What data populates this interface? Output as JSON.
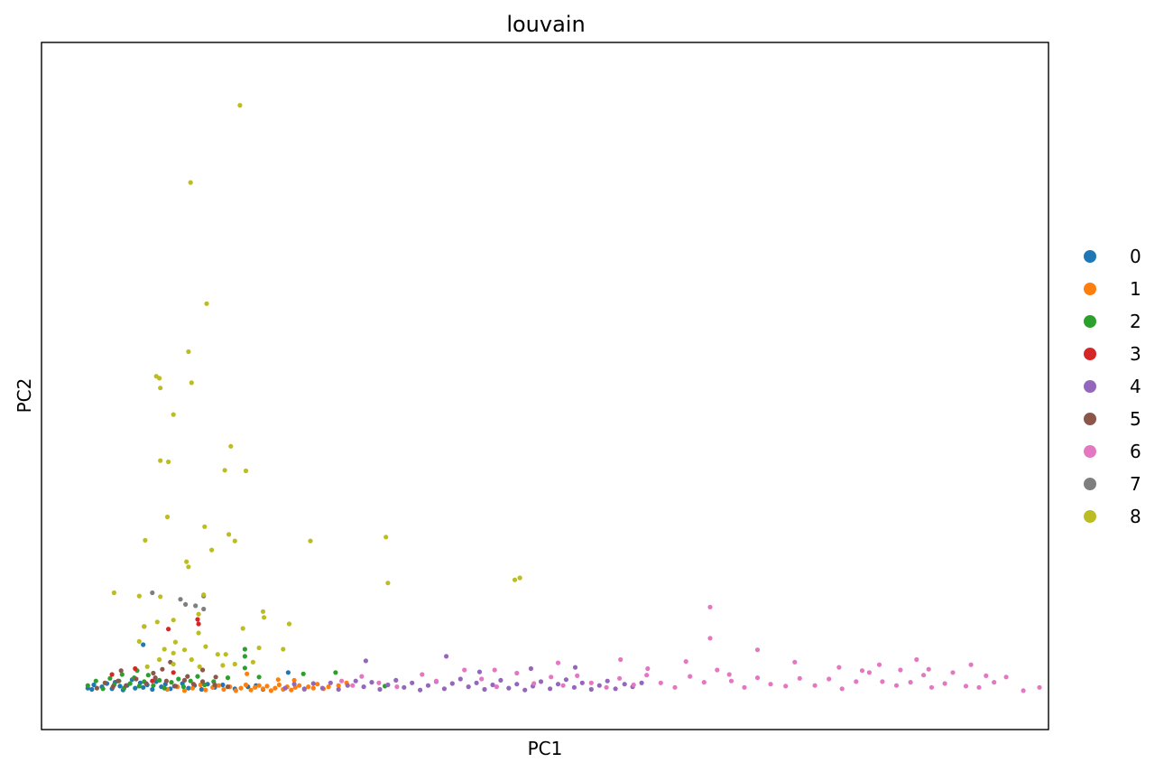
{
  "chart_data": {
    "type": "scatter",
    "title": "louvain",
    "xlabel": "PC1",
    "ylabel": "PC2",
    "xlim": [
      0,
      100
    ],
    "ylim": [
      -6,
      100
    ],
    "grid": false,
    "x_ticks_shown": false,
    "y_ticks_shown": false,
    "legend": {
      "placement": "right",
      "title": ""
    },
    "series": [
      {
        "name": "0",
        "color": "#1f77b4",
        "points": [
          [
            4.6,
            0.4
          ],
          [
            5,
            0.2
          ],
          [
            5.2,
            0.9
          ],
          [
            6,
            0.6
          ],
          [
            6.5,
            1.1
          ],
          [
            7,
            0.3
          ],
          [
            7.3,
            1.3
          ],
          [
            7.8,
            0.7
          ],
          [
            8.1,
            0.1
          ],
          [
            8.5,
            0.8
          ],
          [
            9,
            1.7
          ],
          [
            9.3,
            0.4
          ],
          [
            9.8,
            1.2
          ],
          [
            10.1,
            0.5
          ],
          [
            10.5,
            0.9
          ],
          [
            11,
            0.2
          ],
          [
            11.4,
            1.4
          ],
          [
            11.9,
            0.6
          ],
          [
            12.3,
            1
          ],
          [
            12.8,
            0.3
          ],
          [
            13.2,
            0.7
          ],
          [
            14,
            1.1
          ],
          [
            14.6,
            0.4
          ],
          [
            15.2,
            0.8
          ],
          [
            15.9,
            0.2
          ],
          [
            16.5,
            1
          ],
          [
            17.2,
            0.5
          ],
          [
            18,
            0.9
          ],
          [
            19.2,
            0.3
          ],
          [
            20.5,
            0.6
          ],
          [
            21.3,
            0.8
          ],
          [
            22,
            0.2
          ],
          [
            24.5,
            2.8
          ],
          [
            10.1,
            7.1
          ]
        ]
      },
      {
        "name": "1",
        "color": "#ff7f0e",
        "points": [
          [
            12.5,
            0.2
          ],
          [
            13.5,
            0.6
          ],
          [
            14.2,
            0
          ],
          [
            15,
            0.4
          ],
          [
            15.8,
            0.9
          ],
          [
            16.3,
            0.1
          ],
          [
            17,
            0.5
          ],
          [
            17.6,
            0.8
          ],
          [
            18.1,
            0.2
          ],
          [
            18.7,
            0.6
          ],
          [
            19.3,
            0
          ],
          [
            19.8,
            0.4
          ],
          [
            20.3,
            0.9
          ],
          [
            20.8,
            0.1
          ],
          [
            21.2,
            0.5
          ],
          [
            21.6,
            0.8
          ],
          [
            22,
            0.3
          ],
          [
            22.4,
            0.7
          ],
          [
            22.8,
            0
          ],
          [
            23.2,
            0.4
          ],
          [
            23.6,
            0.9
          ],
          [
            24,
            0.2
          ],
          [
            24.4,
            0.6
          ],
          [
            24.8,
            0.1
          ],
          [
            25.2,
            0.5
          ],
          [
            25.6,
            0.8
          ],
          [
            26.1,
            0.2
          ],
          [
            26.5,
            0.6
          ],
          [
            27,
            0.4
          ],
          [
            27.4,
            1
          ],
          [
            28,
            0.3
          ],
          [
            28.5,
            0.6
          ],
          [
            29.5,
            0.8
          ],
          [
            30.3,
            1.2
          ],
          [
            20.4,
            2.6
          ],
          [
            23.5,
            1.7
          ],
          [
            25.1,
            1.6
          ]
        ]
      },
      {
        "name": "2",
        "color": "#2ca02c",
        "points": [
          [
            4.6,
            0.8
          ],
          [
            5.4,
            1.5
          ],
          [
            6.1,
            0.3
          ],
          [
            6.8,
            1.9
          ],
          [
            7.2,
            0.9
          ],
          [
            7.7,
            1.5
          ],
          [
            8.2,
            0.4
          ],
          [
            8.8,
            1.1
          ],
          [
            9.2,
            2
          ],
          [
            9.7,
            0.7
          ],
          [
            10.2,
            1.4
          ],
          [
            10.6,
            2.4
          ],
          [
            11.1,
            0.8
          ],
          [
            11.7,
            1.6
          ],
          [
            12.2,
            0.4
          ],
          [
            12.9,
            1.3
          ],
          [
            13.6,
            1.8
          ],
          [
            14.1,
            0.6
          ],
          [
            14.8,
            1.5
          ],
          [
            15.5,
            2.2
          ],
          [
            16.2,
            0.9
          ],
          [
            17.1,
            1.4
          ],
          [
            18.5,
            2
          ],
          [
            20.2,
            3.5
          ],
          [
            20.2,
            5.3
          ],
          [
            20.2,
            6.4
          ],
          [
            21.6,
            2.1
          ],
          [
            26,
            2.6
          ],
          [
            29.2,
            2.8
          ],
          [
            34.1,
            0.7
          ],
          [
            9.5,
            3.1
          ],
          [
            8,
            2.5
          ]
        ]
      },
      {
        "name": "3",
        "color": "#d62728",
        "points": [
          [
            10.2,
            9.9
          ],
          [
            12.6,
            9.5
          ],
          [
            15.6,
            10.3
          ],
          [
            15.5,
            11
          ],
          [
            7,
            2.5
          ],
          [
            9.3,
            3.4
          ],
          [
            13.1,
            2.8
          ],
          [
            11,
            1.5
          ]
        ]
      },
      {
        "name": "4",
        "color": "#9467bd",
        "points": [
          [
            24.2,
            0.4
          ],
          [
            25.1,
            1
          ],
          [
            26.1,
            0.3
          ],
          [
            27,
            1.1
          ],
          [
            27.9,
            0.4
          ],
          [
            28.7,
            1.2
          ],
          [
            29.5,
            0.2
          ],
          [
            30.4,
            0.8
          ],
          [
            31.2,
            1.5
          ],
          [
            32,
            0.6
          ],
          [
            32.8,
            1.3
          ],
          [
            33.6,
            0.2
          ],
          [
            34.4,
            0.9
          ],
          [
            35.2,
            1.6
          ],
          [
            36,
            0.5
          ],
          [
            36.8,
            1.2
          ],
          [
            37.6,
            0.1
          ],
          [
            38.4,
            0.8
          ],
          [
            39.2,
            1.4
          ],
          [
            40,
            0.3
          ],
          [
            40.8,
            1.1
          ],
          [
            41.6,
            1.8
          ],
          [
            42.4,
            0.6
          ],
          [
            43.2,
            1.2
          ],
          [
            44,
            0.2
          ],
          [
            44.8,
            0.9
          ],
          [
            45.6,
            1.6
          ],
          [
            46.4,
            0.4
          ],
          [
            47.2,
            1
          ],
          [
            48,
            0.1
          ],
          [
            48.8,
            0.7
          ],
          [
            49.6,
            1.4
          ],
          [
            50.5,
            0.3
          ],
          [
            51.3,
            1
          ],
          [
            52.1,
            1.7
          ],
          [
            52.9,
            0.5
          ],
          [
            53.7,
            1.2
          ],
          [
            54.6,
            0.2
          ],
          [
            55.4,
            0.8
          ],
          [
            56.2,
            1.5
          ],
          [
            57,
            0.3
          ],
          [
            57.9,
            1
          ],
          [
            58.7,
            0.6
          ],
          [
            59.6,
            1.2
          ],
          [
            32.2,
            4.6
          ],
          [
            40.2,
            5.3
          ],
          [
            43.5,
            2.9
          ],
          [
            48.6,
            3.4
          ],
          [
            53,
            3.6
          ]
        ]
      },
      {
        "name": "5",
        "color": "#8c564b",
        "points": [
          [
            5.5,
            0.4
          ],
          [
            6.3,
            1.2
          ],
          [
            7.1,
            0.6
          ],
          [
            7.6,
            1.5
          ],
          [
            8.4,
            0.8
          ],
          [
            9.4,
            1.8
          ],
          [
            10.4,
            1.1
          ],
          [
            11.3,
            2
          ],
          [
            12.4,
            1.5
          ],
          [
            13.3,
            0.7
          ],
          [
            14.2,
            1.6
          ],
          [
            15.1,
            1
          ],
          [
            16,
            1.4
          ],
          [
            17.2,
            0.9
          ],
          [
            18.5,
            0.6
          ],
          [
            7.9,
            3.1
          ],
          [
            11.1,
            2.7
          ],
          [
            12.8,
            4.4
          ],
          [
            16,
            3.2
          ],
          [
            12,
            3.3
          ],
          [
            14.5,
            2.2
          ],
          [
            17.3,
            2.1
          ]
        ]
      },
      {
        "name": "6",
        "color": "#e377c2",
        "points": [
          [
            29.8,
            1.5
          ],
          [
            30.9,
            0.8
          ],
          [
            31.8,
            2.2
          ],
          [
            33.5,
            1.2
          ],
          [
            35.3,
            0.6
          ],
          [
            37.8,
            2.5
          ],
          [
            39.2,
            1.5
          ],
          [
            42,
            3.2
          ],
          [
            43.7,
            1.8
          ],
          [
            45.2,
            0.6
          ],
          [
            47.2,
            2.7
          ],
          [
            48.9,
            1.1
          ],
          [
            50.6,
            2.1
          ],
          [
            51.8,
            0.8
          ],
          [
            53.2,
            2.3
          ],
          [
            54.6,
            1.2
          ],
          [
            56.1,
            0.5
          ],
          [
            57.4,
            1.9
          ],
          [
            58.8,
            0.9
          ],
          [
            60.1,
            2.4
          ],
          [
            61.5,
            1.2
          ],
          [
            62.9,
            0.5
          ],
          [
            64.4,
            2.2
          ],
          [
            65.8,
            1.3
          ],
          [
            67.1,
            3.2
          ],
          [
            68.5,
            1.5
          ],
          [
            69.8,
            0.5
          ],
          [
            71.1,
            2
          ],
          [
            72.4,
            1
          ],
          [
            73.9,
            0.7
          ],
          [
            75.3,
            1.9
          ],
          [
            76.8,
            0.8
          ],
          [
            78.2,
            1.8
          ],
          [
            79.5,
            0.3
          ],
          [
            80.9,
            1.4
          ],
          [
            82.2,
            2.8
          ],
          [
            83.5,
            1.4
          ],
          [
            84.9,
            0.8
          ],
          [
            86.3,
            1.3
          ],
          [
            87.6,
            2.4
          ],
          [
            88.4,
            0.5
          ],
          [
            89.7,
            1.1
          ],
          [
            90.5,
            2.8
          ],
          [
            91.8,
            0.7
          ],
          [
            93.1,
            0.5
          ],
          [
            94.6,
            1.3
          ],
          [
            95.8,
            2.1
          ],
          [
            97.5,
            0
          ],
          [
            99.1,
            0.5
          ],
          [
            51.3,
            4.3
          ],
          [
            57.5,
            4.8
          ],
          [
            64,
            4.5
          ],
          [
            71.1,
            6.3
          ],
          [
            81.5,
            3.1
          ],
          [
            85.3,
            3.2
          ],
          [
            88.1,
            3.3
          ],
          [
            66.4,
            12.9
          ],
          [
            66.4,
            8.1
          ],
          [
            79.2,
            3.6
          ],
          [
            93.8,
            2.3
          ],
          [
            45,
            3.2
          ],
          [
            60.2,
            3.4
          ],
          [
            68.3,
            2.5
          ],
          [
            74.8,
            4.4
          ],
          [
            83.2,
            4
          ],
          [
            86.9,
            4.8
          ],
          [
            92.3,
            4
          ]
        ]
      },
      {
        "name": "7",
        "color": "#7f7f7f",
        "points": [
          [
            11,
            15.1
          ],
          [
            13.8,
            14.1
          ],
          [
            16.1,
            14.6
          ],
          [
            14.3,
            13.3
          ],
          [
            15.3,
            13.1
          ],
          [
            16.1,
            12.6
          ]
        ]
      },
      {
        "name": "8",
        "color": "#bcbd22",
        "points": [
          [
            19.7,
            90.3
          ],
          [
            14.8,
            78.4
          ],
          [
            16.4,
            59.7
          ],
          [
            14.6,
            52.3
          ],
          [
            11.4,
            48.5
          ],
          [
            11.7,
            48.2
          ],
          [
            14.9,
            47.5
          ],
          [
            11.8,
            46.7
          ],
          [
            13.1,
            42.6
          ],
          [
            18.8,
            37.7
          ],
          [
            11.8,
            35.5
          ],
          [
            12.6,
            35.3
          ],
          [
            18.2,
            34
          ],
          [
            20.3,
            33.9
          ],
          [
            12.5,
            26.8
          ],
          [
            16.2,
            25.3
          ],
          [
            10.3,
            23.2
          ],
          [
            18.6,
            24.1
          ],
          [
            19.2,
            23.1
          ],
          [
            16.9,
            21.7
          ],
          [
            26.7,
            23.1
          ],
          [
            34.2,
            23.7
          ],
          [
            14.4,
            19.9
          ],
          [
            14.6,
            19.1
          ],
          [
            7.2,
            15.1
          ],
          [
            9.7,
            14.6
          ],
          [
            11.8,
            14.5
          ],
          [
            16.1,
            14.8
          ],
          [
            22,
            12.2
          ],
          [
            22.1,
            11.3
          ],
          [
            15.6,
            11.8
          ],
          [
            10.2,
            9.9
          ],
          [
            11.5,
            10.6
          ],
          [
            13.1,
            10.9
          ],
          [
            15.6,
            8.9
          ],
          [
            20,
            9.6
          ],
          [
            13.3,
            7.5
          ],
          [
            12.2,
            6.4
          ],
          [
            13.1,
            5.8
          ],
          [
            14.2,
            6.3
          ],
          [
            16.3,
            6.8
          ],
          [
            17.5,
            5.6
          ],
          [
            9.7,
            7.6
          ],
          [
            10.5,
            3.7
          ],
          [
            11.7,
            4.8
          ],
          [
            13.1,
            4.1
          ],
          [
            14.9,
            4.8
          ],
          [
            15.7,
            3.7
          ],
          [
            18,
            3.9
          ],
          [
            19.2,
            4.1
          ],
          [
            34.4,
            16.6
          ],
          [
            47,
            17.1
          ],
          [
            47.5,
            17.4
          ],
          [
            24.6,
            10.3
          ],
          [
            24,
            6.4
          ],
          [
            18.3,
            5.6
          ],
          [
            21,
            4.4
          ],
          [
            21.6,
            6.6
          ]
        ]
      }
    ]
  }
}
